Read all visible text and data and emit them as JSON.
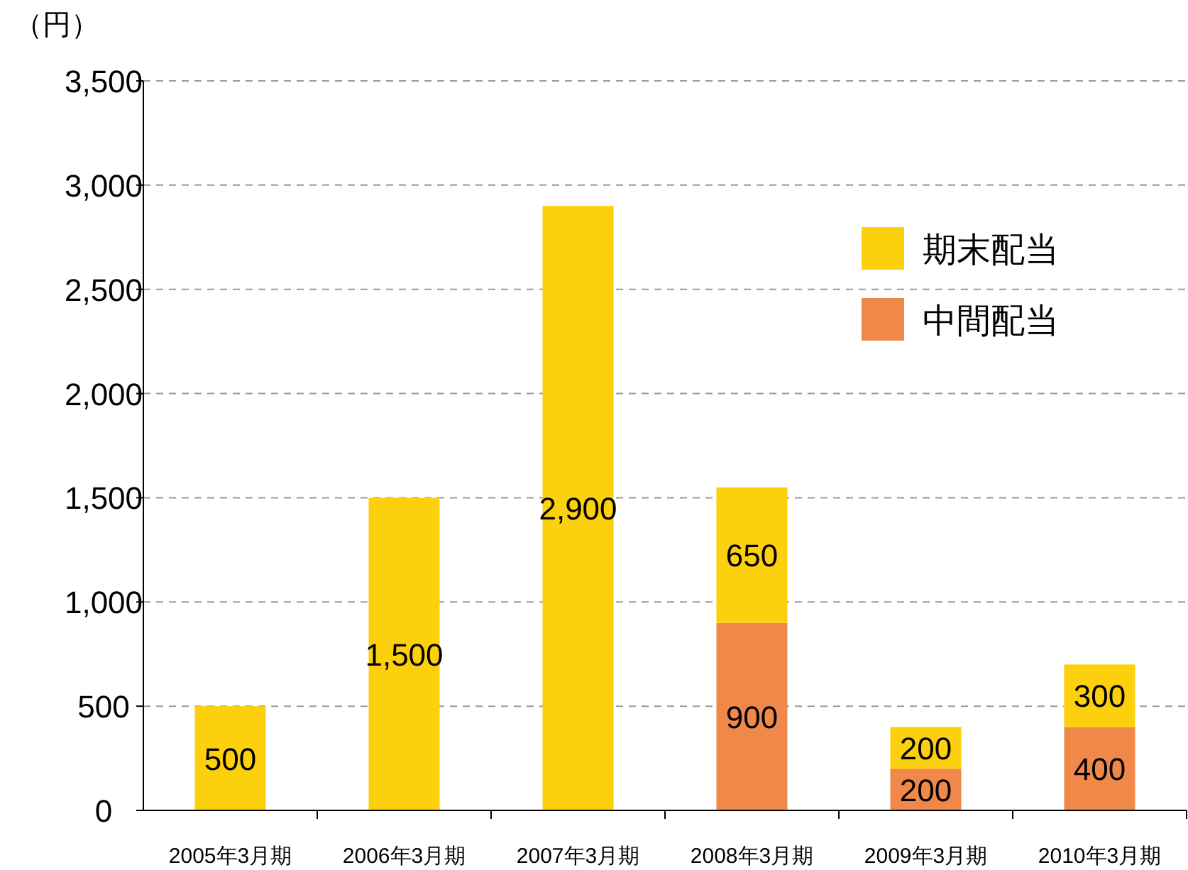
{
  "chart_data": {
    "type": "bar",
    "stacked": true,
    "ylabel": "（円）",
    "categories": [
      "2005年3月期",
      "2006年3月期",
      "2007年3月期",
      "2008年3月期",
      "2009年3月期",
      "2010年3月期"
    ],
    "series": [
      {
        "name": "中間配当",
        "color": "#f0884a",
        "values": [
          null,
          null,
          null,
          900,
          200,
          400
        ],
        "value_labels": [
          null,
          null,
          null,
          "900",
          "200",
          "400"
        ]
      },
      {
        "name": "期末配当",
        "color": "#fcd00c",
        "values": [
          500,
          1500,
          2900,
          650,
          200,
          300
        ],
        "value_labels": [
          "500",
          "1,500",
          "2,900",
          "650",
          "200",
          "300"
        ]
      }
    ],
    "ylim": [
      0,
      3500
    ],
    "yticks": [
      {
        "value": 0,
        "label": "0"
      },
      {
        "value": 500,
        "label": "500"
      },
      {
        "value": 1000,
        "label": "1,000"
      },
      {
        "value": 1500,
        "label": "1,500"
      },
      {
        "value": 2000,
        "label": "2,000"
      },
      {
        "value": 2500,
        "label": "2,500"
      },
      {
        "value": 3000,
        "label": "3,000"
      },
      {
        "value": 3500,
        "label": "3,500"
      }
    ],
    "grid": "y",
    "legend": "top right"
  }
}
